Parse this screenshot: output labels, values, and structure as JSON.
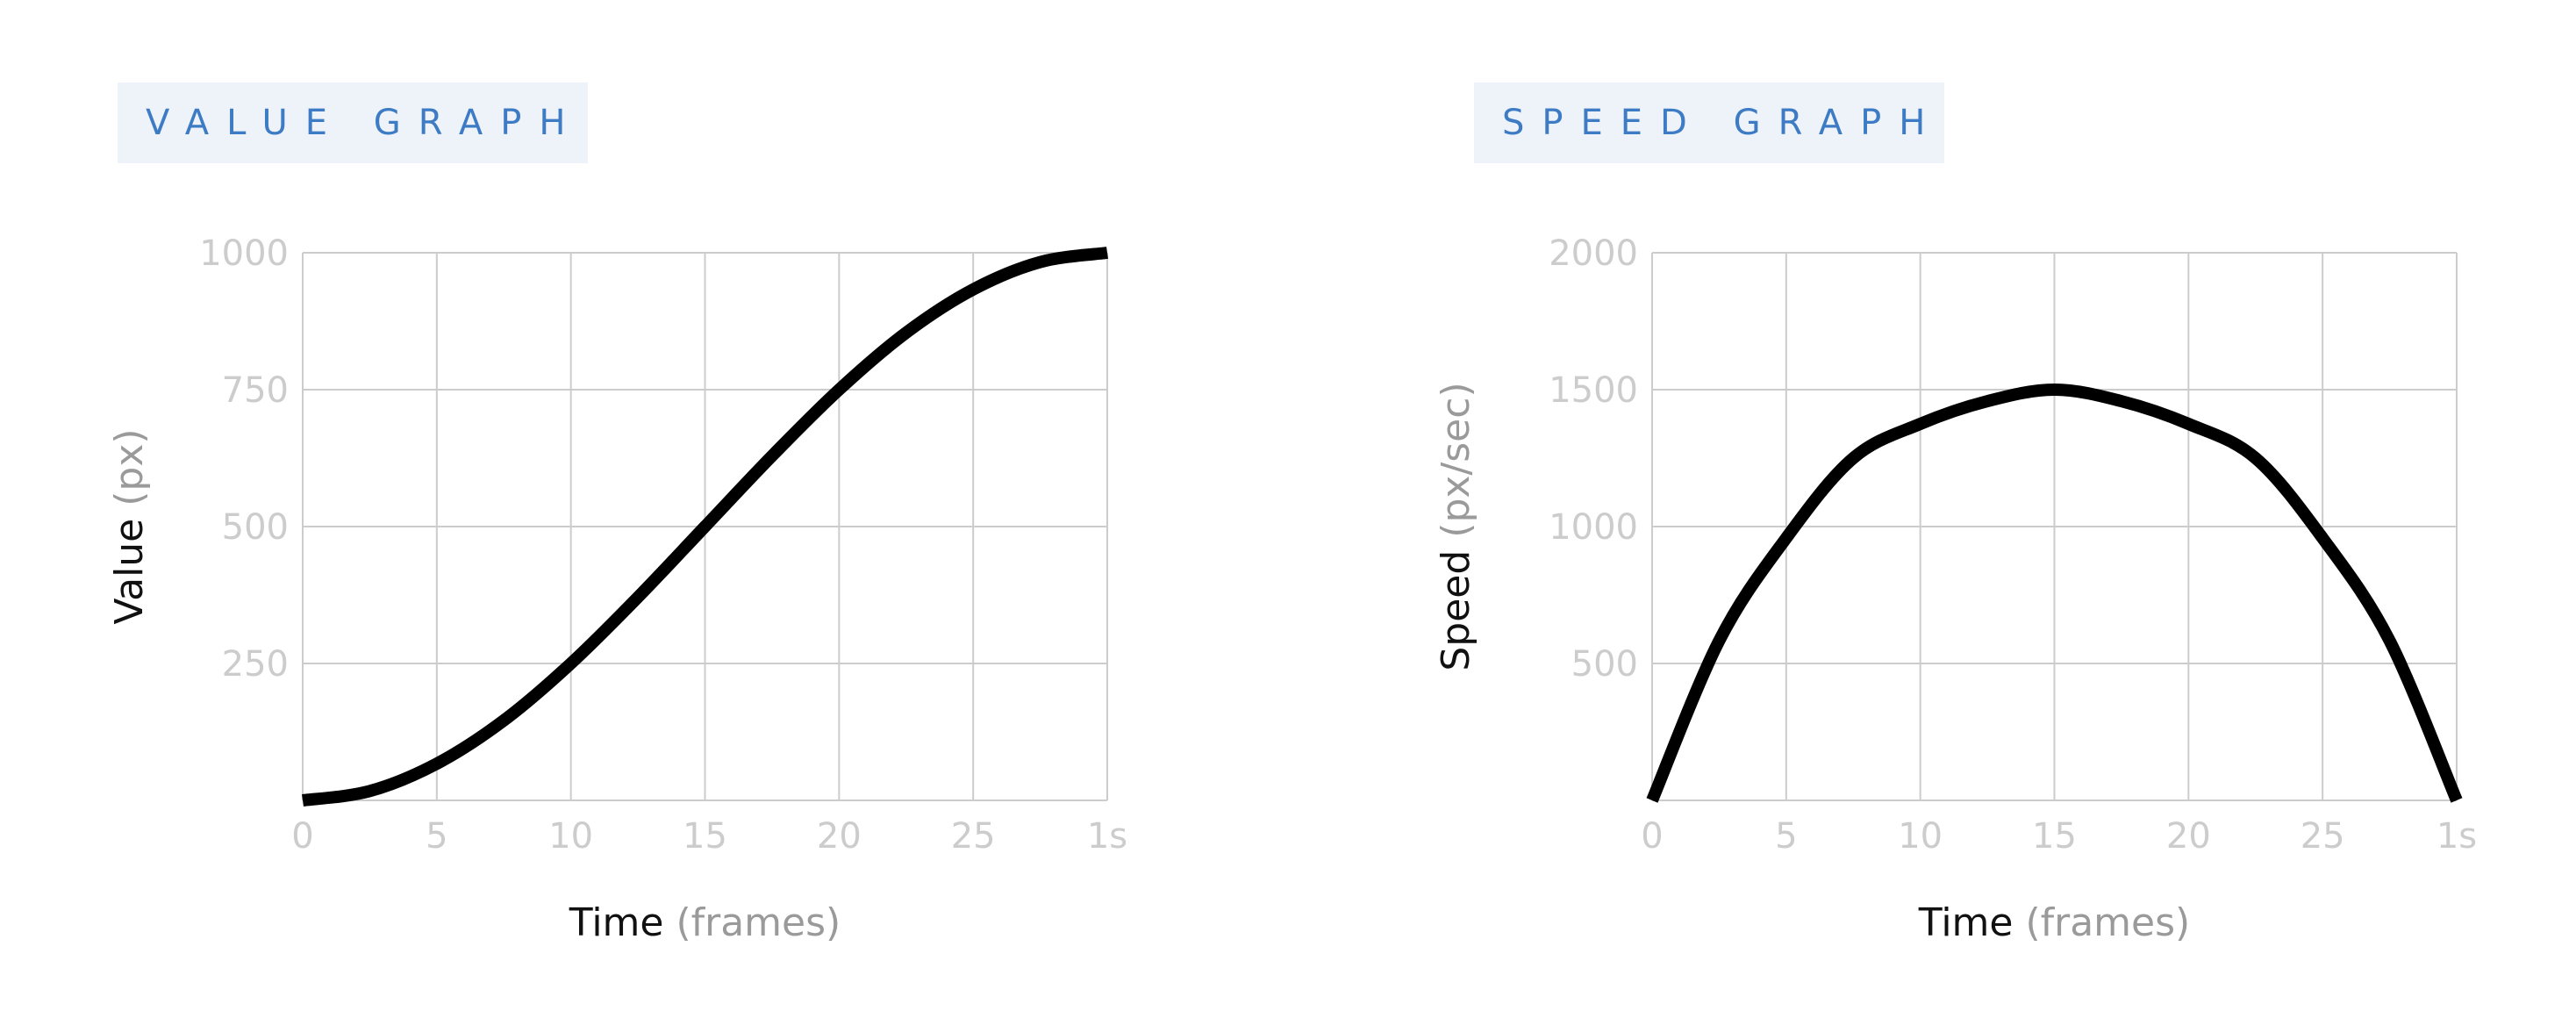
{
  "labels": {
    "value_graph": "VALUE GRAPH",
    "speed_graph": "SPEED GRAPH"
  },
  "colors": {
    "label_background": "#eef3fa",
    "label_text": "#3d7cc4",
    "grid": "#cccccc",
    "curve": "#000000",
    "tick_text": "#cccccc",
    "unit_text": "#9a9a9a"
  },
  "chart_data": [
    {
      "type": "line",
      "title": "VALUE GRAPH",
      "xlabel": "Time",
      "xlabel_unit": "(frames)",
      "ylabel": "Value",
      "ylabel_unit": "(px)",
      "xlim": [
        0,
        30
      ],
      "ylim": [
        0,
        1000
      ],
      "x_ticks": [
        "0",
        "5",
        "10",
        "15",
        "20",
        "25",
        "1s"
      ],
      "y_ticks": [
        "250",
        "500",
        "750",
        "1000"
      ],
      "grid": true,
      "x": [
        0,
        2.5,
        5,
        7.5,
        10,
        12.5,
        15,
        17.5,
        20,
        22.5,
        25,
        27.5,
        30
      ],
      "y": [
        0,
        17,
        67,
        146,
        250,
        371,
        500,
        629,
        750,
        854,
        933,
        983,
        1000
      ]
    },
    {
      "type": "line",
      "title": "SPEED GRAPH",
      "xlabel": "Time",
      "xlabel_unit": "(frames)",
      "ylabel": "Speed",
      "ylabel_unit": "(px/sec)",
      "xlim": [
        0,
        30
      ],
      "ylim": [
        0,
        2000
      ],
      "x_ticks": [
        "0",
        "5",
        "10",
        "15",
        "20",
        "25",
        "1s"
      ],
      "y_ticks": [
        "500",
        "1000",
        "1500",
        "2000"
      ],
      "grid": true,
      "x": [
        0,
        2.5,
        5,
        7.5,
        10,
        12.5,
        15,
        17.5,
        20,
        22.5,
        25,
        27.5,
        30
      ],
      "y": [
        0,
        583,
        958,
        1250,
        1375,
        1458,
        1500,
        1458,
        1375,
        1250,
        958,
        583,
        0
      ]
    }
  ]
}
